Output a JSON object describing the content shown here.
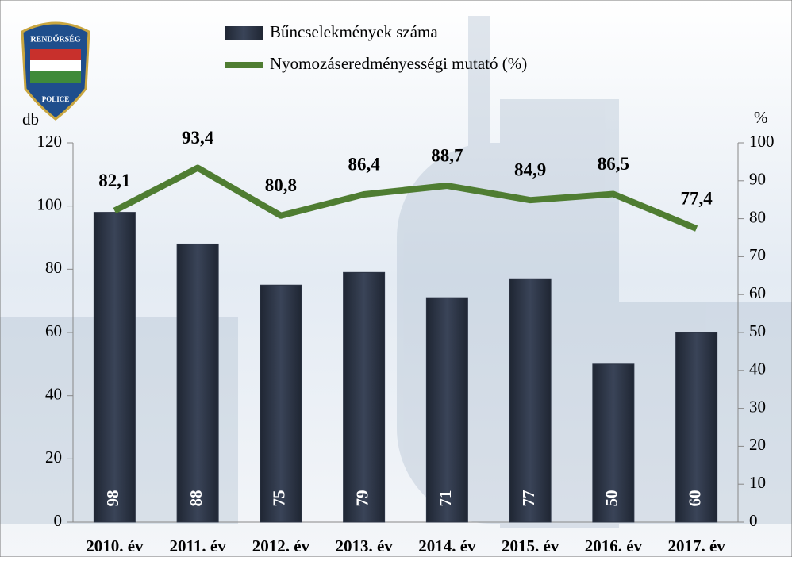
{
  "logo": {
    "top": "RENDŐRSÉG",
    "bottom": "POLICE"
  },
  "chart_data": {
    "type": "bar",
    "categories": [
      "2010. év",
      "2011. év",
      "2012. év",
      "2013. év",
      "2014. év",
      "2015. év",
      "2016. év",
      "2017. év"
    ],
    "series": [
      {
        "name": "Bűncselekmények száma",
        "type": "bar",
        "color": "#2c3444",
        "values": [
          98,
          88,
          75,
          79,
          71,
          77,
          50,
          60
        ]
      },
      {
        "name": "Nyomozáseredményességi mutató (%)",
        "type": "line",
        "axis": "y2",
        "color": "#4f7d32",
        "values": [
          82.1,
          93.4,
          80.8,
          86.4,
          88.7,
          84.9,
          86.5,
          77.4
        ],
        "value_labels": [
          "82,1",
          "93,4",
          "80,8",
          "86,4",
          "88,7",
          "84,9",
          "86,5",
          "77,4"
        ]
      }
    ],
    "y_label": "db",
    "y2_label": "%",
    "ylim": [
      0,
      120
    ],
    "yticks": [
      0,
      20,
      40,
      60,
      80,
      100,
      120
    ],
    "y2lim": [
      0,
      100
    ],
    "y2ticks": [
      0,
      10,
      20,
      30,
      40,
      50,
      60,
      70,
      80,
      90,
      100
    ]
  }
}
